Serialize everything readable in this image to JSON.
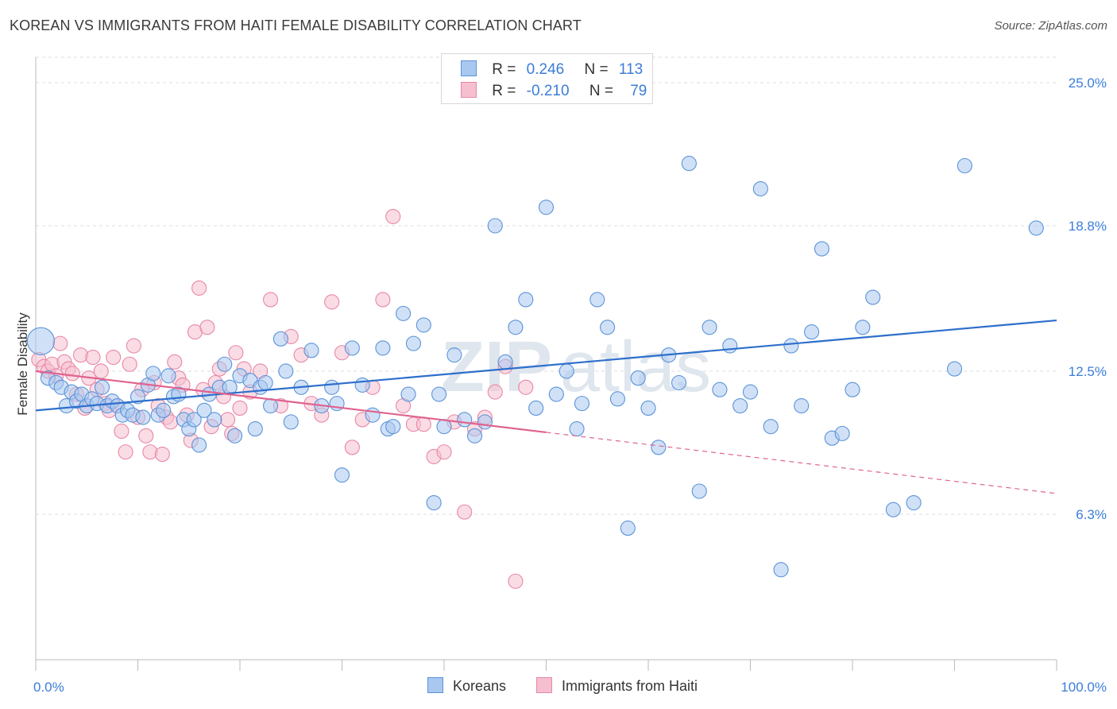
{
  "title": "KOREAN VS IMMIGRANTS FROM HAITI FEMALE DISABILITY CORRELATION CHART",
  "source": "Source: ZipAtlas.com",
  "watermark": {
    "zip": "ZIP",
    "atlas": "atlas"
  },
  "legend": {
    "korean": {
      "r_label": "R =",
      "r_value": "0.246",
      "n_label": "N =",
      "n_value": "113"
    },
    "haiti": {
      "r_label": "R =",
      "r_value": "-0.210",
      "n_label": "N =",
      "n_value": "79"
    }
  },
  "bottom_legend": {
    "korean": "Koreans",
    "haiti": "Immigrants from Haiti"
  },
  "colors": {
    "korean_fill": "#a9c8f0",
    "korean_stroke": "#5b93d8",
    "korean_line": "#2d6fcc",
    "haiti_fill": "#f5bfd0",
    "haiti_stroke": "#e887a6",
    "haiti_line": "#e0638f",
    "axis_label": "#3b7dd8",
    "grid": "#dddddd"
  },
  "chart_data": {
    "type": "scatter",
    "title": "KOREAN VS IMMIGRANTS FROM HAITI FEMALE DISABILITY CORRELATION CHART",
    "xlabel": "",
    "ylabel": "Female Disability",
    "xlim": [
      0,
      100
    ],
    "ylim": [
      0,
      26.1
    ],
    "x_ticks": [
      "0.0%",
      "100.0%"
    ],
    "y_ticks": [
      {
        "value": 6.3,
        "label": "6.3%"
      },
      {
        "value": 12.5,
        "label": "12.5%"
      },
      {
        "value": 18.8,
        "label": "18.8%"
      },
      {
        "value": 25.0,
        "label": "25.0%"
      }
    ],
    "grid": true,
    "legend_position": "top-center",
    "series": [
      {
        "name": "Koreans",
        "trend": {
          "x": [
            0,
            100
          ],
          "y": [
            10.8,
            14.7
          ],
          "dashed_from": null
        },
        "points": [
          [
            0.5,
            13.8
          ],
          [
            1.2,
            12.2
          ],
          [
            2,
            12
          ],
          [
            2.5,
            11.8
          ],
          [
            3,
            11
          ],
          [
            3.5,
            11.6
          ],
          [
            4,
            11.2
          ],
          [
            4.5,
            11.5
          ],
          [
            5,
            11
          ],
          [
            5.5,
            11.3
          ],
          [
            6,
            11.1
          ],
          [
            6.5,
            11.8
          ],
          [
            7,
            11
          ],
          [
            7.5,
            11.2
          ],
          [
            8,
            11
          ],
          [
            8.5,
            10.6
          ],
          [
            9,
            10.8
          ],
          [
            9.5,
            10.6
          ],
          [
            10,
            11.4
          ],
          [
            10.5,
            10.5
          ],
          [
            11,
            11.9
          ],
          [
            11.5,
            12.4
          ],
          [
            12,
            10.6
          ],
          [
            12.5,
            10.8
          ],
          [
            13,
            12.3
          ],
          [
            13.5,
            11.4
          ],
          [
            14,
            11.5
          ],
          [
            14.5,
            10.4
          ],
          [
            15,
            10
          ],
          [
            15.5,
            10.4
          ],
          [
            16,
            9.3
          ],
          [
            16.5,
            10.8
          ],
          [
            17,
            11.5
          ],
          [
            17.5,
            10.4
          ],
          [
            18,
            11.8
          ],
          [
            18.5,
            12.8
          ],
          [
            19,
            11.8
          ],
          [
            19.5,
            9.7
          ],
          [
            20,
            12.3
          ],
          [
            21,
            12.1
          ],
          [
            21.5,
            10
          ],
          [
            22,
            11.8
          ],
          [
            22.5,
            12
          ],
          [
            23,
            11
          ],
          [
            24,
            13.9
          ],
          [
            24.5,
            12.5
          ],
          [
            25,
            10.3
          ],
          [
            26,
            11.8
          ],
          [
            27,
            13.4
          ],
          [
            28,
            11
          ],
          [
            29,
            11.8
          ],
          [
            29.5,
            11.1
          ],
          [
            30,
            8
          ],
          [
            31,
            13.5
          ],
          [
            32,
            11.9
          ],
          [
            33,
            10.6
          ],
          [
            34,
            13.5
          ],
          [
            34.5,
            10
          ],
          [
            35,
            10.1
          ],
          [
            36,
            15
          ],
          [
            36.5,
            11.5
          ],
          [
            37,
            13.7
          ],
          [
            38,
            14.5
          ],
          [
            39,
            6.8
          ],
          [
            39.5,
            11.5
          ],
          [
            40,
            10.1
          ],
          [
            41,
            13.2
          ],
          [
            42,
            10.4
          ],
          [
            43,
            9.7
          ],
          [
            44,
            10.3
          ],
          [
            45,
            18.8
          ],
          [
            46,
            12.9
          ],
          [
            47,
            14.4
          ],
          [
            48,
            15.6
          ],
          [
            49,
            10.9
          ],
          [
            50,
            19.6
          ],
          [
            51,
            11.5
          ],
          [
            52,
            12.5
          ],
          [
            53,
            10
          ],
          [
            53.5,
            11.1
          ],
          [
            55,
            15.6
          ],
          [
            56,
            14.4
          ],
          [
            57,
            11.3
          ],
          [
            58,
            5.7
          ],
          [
            59,
            12.2
          ],
          [
            60,
            10.9
          ],
          [
            61,
            9.2
          ],
          [
            62,
            13.2
          ],
          [
            63,
            12
          ],
          [
            64,
            21.5
          ],
          [
            65,
            7.3
          ],
          [
            66,
            14.4
          ],
          [
            67,
            11.7
          ],
          [
            68,
            13.6
          ],
          [
            69,
            11
          ],
          [
            70,
            11.6
          ],
          [
            71,
            20.4
          ],
          [
            72,
            10.1
          ],
          [
            73,
            3.9
          ],
          [
            74,
            13.6
          ],
          [
            75,
            11
          ],
          [
            76,
            14.2
          ],
          [
            77,
            17.8
          ],
          [
            78,
            9.6
          ],
          [
            79,
            9.8
          ],
          [
            80,
            11.7
          ],
          [
            81,
            14.4
          ],
          [
            82,
            15.7
          ],
          [
            84,
            6.5
          ],
          [
            86,
            6.8
          ],
          [
            90,
            12.6
          ],
          [
            91,
            21.4
          ],
          [
            98,
            18.7
          ]
        ]
      },
      {
        "name": "Immigrants from Haiti",
        "trend": {
          "x": [
            0,
            100
          ],
          "y": [
            12.5,
            7.2
          ],
          "dashed_from": 50
        },
        "points": [
          [
            0.3,
            13
          ],
          [
            0.8,
            12.7
          ],
          [
            1.2,
            12.5
          ],
          [
            1.6,
            12.8
          ],
          [
            2,
            12.3
          ],
          [
            2.4,
            13.7
          ],
          [
            2.8,
            12.9
          ],
          [
            3.2,
            12.6
          ],
          [
            3.6,
            12.4
          ],
          [
            4,
            11.5
          ],
          [
            4.4,
            13.2
          ],
          [
            4.8,
            10.9
          ],
          [
            5.2,
            12.2
          ],
          [
            5.6,
            13.1
          ],
          [
            6,
            11.7
          ],
          [
            6.4,
            12.5
          ],
          [
            6.8,
            11.1
          ],
          [
            7.2,
            10.8
          ],
          [
            7.6,
            13.1
          ],
          [
            8,
            11
          ],
          [
            8.4,
            9.9
          ],
          [
            8.8,
            9
          ],
          [
            9.2,
            12.8
          ],
          [
            9.6,
            13.6
          ],
          [
            10,
            10.5
          ],
          [
            10.4,
            11.7
          ],
          [
            10.8,
            9.7
          ],
          [
            11.2,
            9
          ],
          [
            11.6,
            12
          ],
          [
            12,
            11
          ],
          [
            12.4,
            8.9
          ],
          [
            12.8,
            10.5
          ],
          [
            13.2,
            10.3
          ],
          [
            13.6,
            12.9
          ],
          [
            14,
            12.2
          ],
          [
            14.4,
            11.9
          ],
          [
            14.8,
            10.6
          ],
          [
            15.2,
            9.5
          ],
          [
            15.6,
            14.2
          ],
          [
            16,
            16.1
          ],
          [
            16.4,
            11.7
          ],
          [
            16.8,
            14.4
          ],
          [
            17.2,
            10.1
          ],
          [
            17.6,
            12
          ],
          [
            18,
            12.6
          ],
          [
            18.4,
            11.4
          ],
          [
            18.8,
            10.4
          ],
          [
            19.2,
            9.8
          ],
          [
            19.6,
            13.3
          ],
          [
            20,
            10.9
          ],
          [
            20.4,
            12.6
          ],
          [
            21,
            11.6
          ],
          [
            22,
            12.5
          ],
          [
            23,
            15.6
          ],
          [
            24,
            11
          ],
          [
            25,
            14
          ],
          [
            26,
            13.2
          ],
          [
            27,
            11.1
          ],
          [
            28,
            10.6
          ],
          [
            29,
            15.5
          ],
          [
            30,
            13.3
          ],
          [
            31,
            9.2
          ],
          [
            32,
            10.4
          ],
          [
            33,
            11.8
          ],
          [
            34,
            15.6
          ],
          [
            35,
            19.2
          ],
          [
            36,
            11
          ],
          [
            37,
            10.2
          ],
          [
            38,
            10.2
          ],
          [
            39,
            8.8
          ],
          [
            40,
            9
          ],
          [
            41,
            10.3
          ],
          [
            42,
            6.4
          ],
          [
            43,
            10
          ],
          [
            44,
            10.5
          ],
          [
            45,
            11.6
          ],
          [
            46,
            12.7
          ],
          [
            47,
            3.4
          ],
          [
            48,
            11.8
          ]
        ]
      }
    ]
  }
}
